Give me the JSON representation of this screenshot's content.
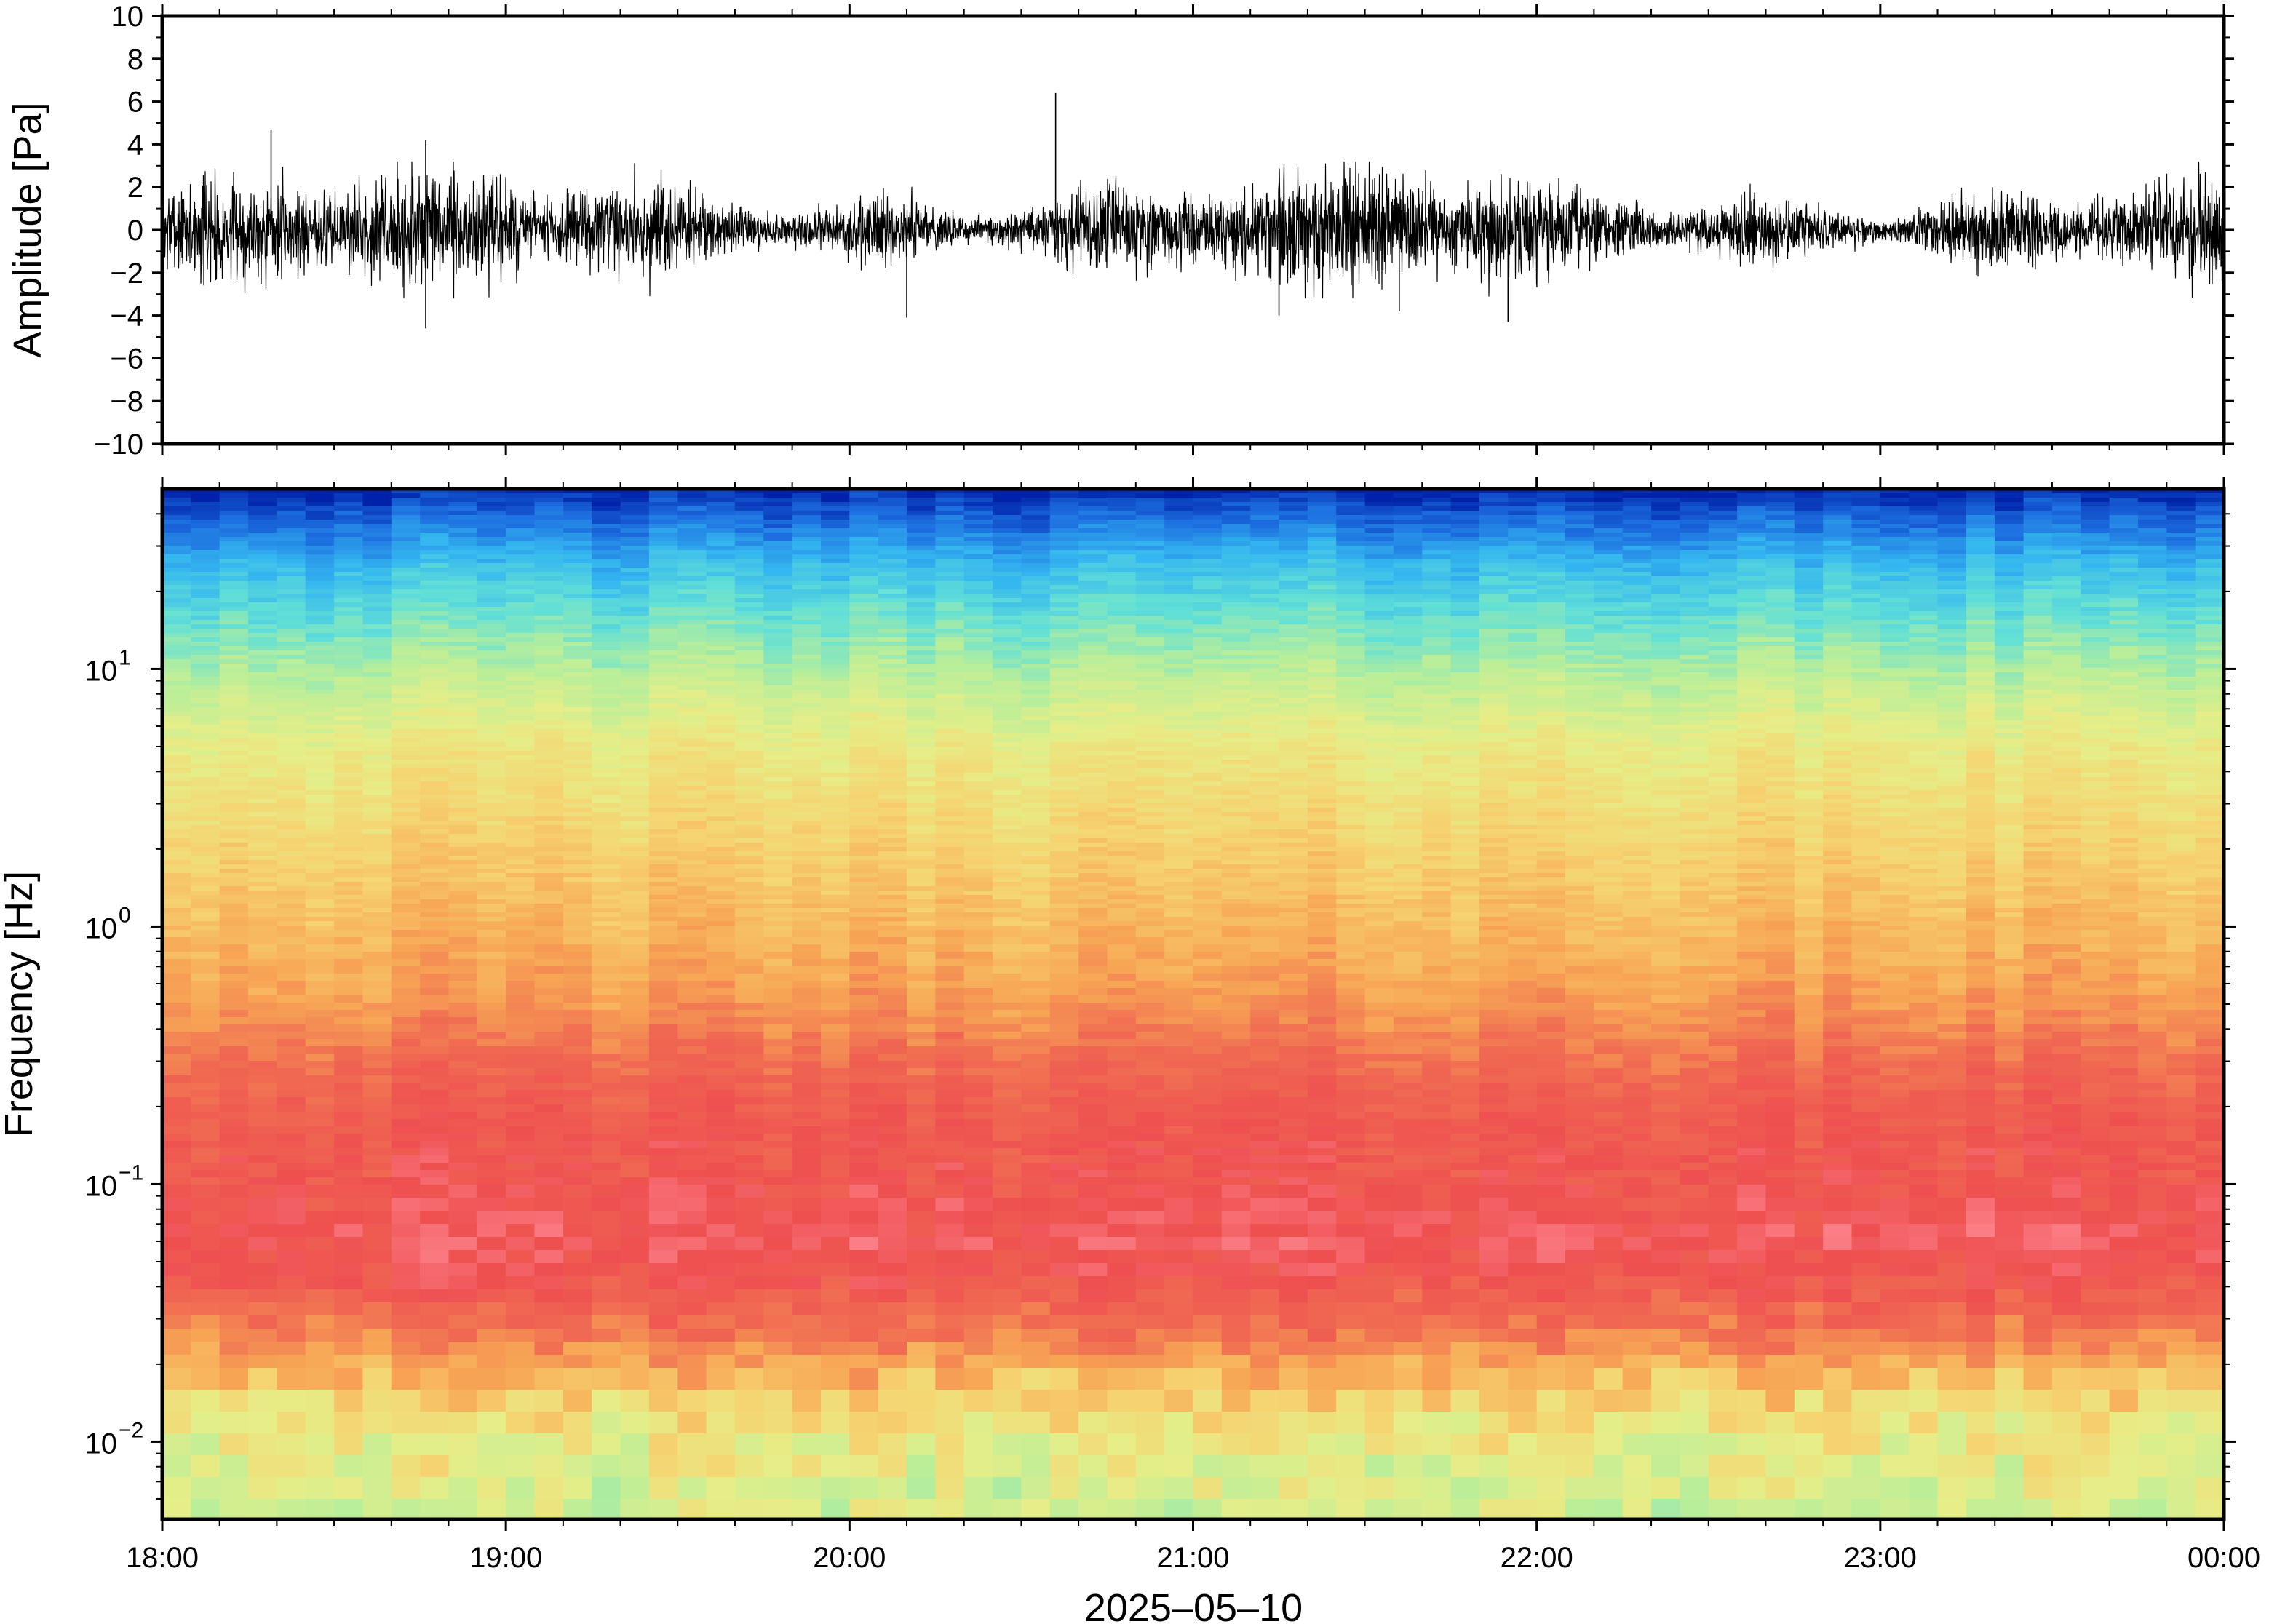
{
  "figure": {
    "x_axis": {
      "label": "2025–05–10",
      "start": "18:00",
      "end": "00:00",
      "tick_labels": [
        "18:00",
        "19:00",
        "20:00",
        "21:00",
        "22:00",
        "23:00",
        "00:00"
      ],
      "minor_ticks_per_hour": 6
    }
  },
  "chart_data": [
    {
      "type": "line",
      "panel": "waveform",
      "ylabel": "Amplitude [Pa]",
      "ylim": [
        -10,
        10
      ],
      "y_tick_labels": [
        "10",
        "8",
        "6",
        "4",
        "2",
        "0",
        "−2",
        "−4",
        "−6",
        "−8",
        "−10"
      ],
      "y_tick_values": [
        10,
        8,
        6,
        4,
        2,
        0,
        -2,
        -4,
        -6,
        -8,
        -10
      ],
      "xlim": [
        "18:00",
        "00:00"
      ],
      "series": [
        {
          "color": "#000000",
          "noise_level_pa": 1.0,
          "peaks": [
            {
              "x": "18:19",
              "y": 4.7
            },
            {
              "x": "18:46",
              "y": 4.2
            },
            {
              "x": "18:46",
              "y": -4.6
            },
            {
              "x": "20:10",
              "y": -4.1
            },
            {
              "x": "20:36",
              "y": 6.4
            },
            {
              "x": "21:15",
              "y": -4.0
            },
            {
              "x": "21:36",
              "y": -3.8
            },
            {
              "x": "21:55",
              "y": -4.3
            }
          ]
        }
      ]
    },
    {
      "type": "heatmap",
      "panel": "spectrogram",
      "ylabel": "Frequency [Hz]",
      "y_scale": "log",
      "ylim_hz": [
        0.005,
        50
      ],
      "y_tick_labels": [
        {
          "base": "10",
          "exp": "1",
          "value": 10
        },
        {
          "base": "10",
          "exp": "0",
          "value": 1
        },
        {
          "base": "10",
          "exp": "−1",
          "value": 0.1
        },
        {
          "base": "10",
          "exp": "−2",
          "value": 0.01
        }
      ],
      "xlim": [
        "18:00",
        "00:00"
      ],
      "colormap": [
        "#0022aa",
        "#1d6fe0",
        "#34b6f0",
        "#62e0d6",
        "#b8ee9a",
        "#e6ee88",
        "#f6d270",
        "#f7a655",
        "#f06a52",
        "#ee4f50",
        "#ff8a94"
      ],
      "level_profile": [
        {
          "freq_hz": 50,
          "level": 0.0
        },
        {
          "freq_hz": 40,
          "level": 0.08
        },
        {
          "freq_hz": 25,
          "level": 0.22
        },
        {
          "freq_hz": 15,
          "level": 0.32
        },
        {
          "freq_hz": 10,
          "level": 0.4
        },
        {
          "freq_hz": 5,
          "level": 0.52
        },
        {
          "freq_hz": 2,
          "level": 0.6
        },
        {
          "freq_hz": 1,
          "level": 0.66
        },
        {
          "freq_hz": 0.5,
          "level": 0.72
        },
        {
          "freq_hz": 0.3,
          "level": 0.8
        },
        {
          "freq_hz": 0.2,
          "level": 0.85
        },
        {
          "freq_hz": 0.1,
          "level": 0.88
        },
        {
          "freq_hz": 0.06,
          "level": 0.92
        },
        {
          "freq_hz": 0.04,
          "level": 0.86
        },
        {
          "freq_hz": 0.025,
          "level": 0.76
        },
        {
          "freq_hz": 0.015,
          "level": 0.6
        },
        {
          "freq_hz": 0.01,
          "level": 0.52
        },
        {
          "freq_hz": 0.005,
          "level": 0.45
        }
      ]
    }
  ]
}
